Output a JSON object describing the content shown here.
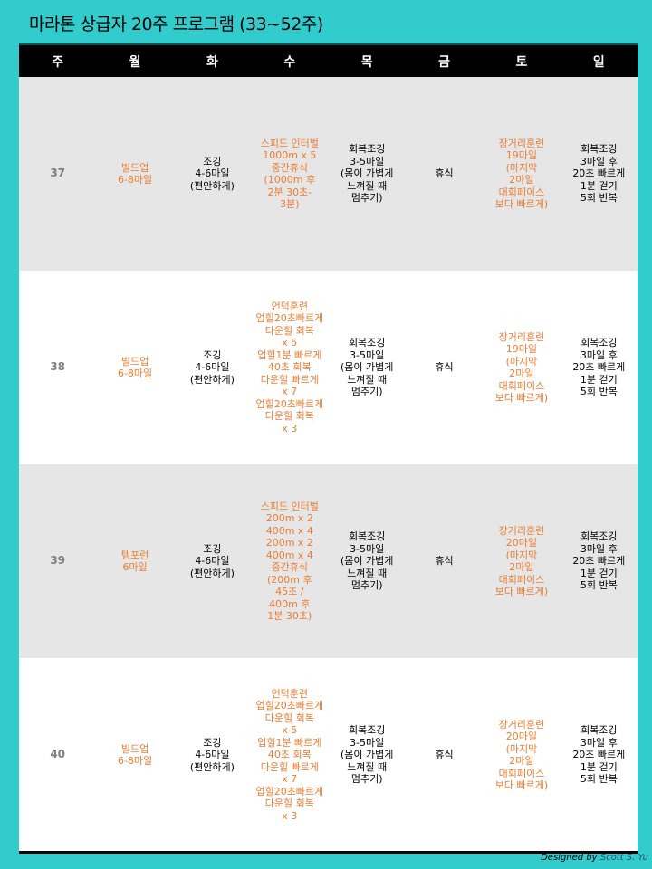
{
  "title": "마라톤 상급자 20주 프로그램 (33~52주)",
  "header": [
    "주",
    "월",
    "화",
    "수",
    "목",
    "금",
    "토",
    "일"
  ],
  "rows": [
    {
      "week": "37",
      "mon": "빌드업\n6-8마일",
      "tue": "조깅\n4-6마일\n(편안하게)",
      "wed": "스피드 인터벌\n1000m x 5\n중간휴식\n(1000m 후\n2분 30초-\n3분)",
      "thu": "회복조깅\n3-5마일\n(몸이 가볍게\n느껴질 때\n멈추기)",
      "fri": "휴식",
      "sat": "장거리훈련\n19마일\n(마지막\n2마일\n대회페이스\n보다 빠르게)",
      "sun": "회복조깅\n3마일 후\n20초 빠르게\n1분 걷기\n5회 반복"
    },
    {
      "week": "38",
      "mon": "빌드업\n6-8마일",
      "tue": "조깅\n4-6마일\n(편안하게)",
      "wed": "언덕훈련\n업힐20초빠르게\n다운힐 회복\nx 5\n업힐1분 빠르게\n40초 회복\n다운힐 빠르게\nx 7\n업힐20초빠르게\n다운힐 회복\nx 3",
      "thu": "회복조깅\n3-5마일\n(몸이 가볍게\n느껴질 때\n멈추기)",
      "fri": "휴식",
      "sat": "장거리훈련\n19마일\n(마지막\n2마일\n대회페이스\n보다 빠르게)",
      "sun": "회복조깅\n3마일 후\n20초 빠르게\n1분 걷기\n5회 반복"
    },
    {
      "week": "39",
      "mon": "템포런\n6마일",
      "tue": "조깅\n4-6마일\n(편안하게)",
      "wed": "스피드 인터벌\n200m x 2\n400m x 4\n200m x 2\n400m x 4\n중간휴식\n(200m 후\n45초 /\n400m 후\n1분 30초)",
      "thu": "회복조깅\n3-5마일\n(몸이 가볍게\n느껴질 때\n멈추기)",
      "fri": "휴식",
      "sat": "장거리훈련\n20마일\n(마지막\n2마일\n대회페이스\n보다 빠르게)",
      "sun": "회복조깅\n3마일 후\n20초 빠르게\n1분 걷기\n5회 반복"
    },
    {
      "week": "40",
      "mon": "빌드업\n6-8마일",
      "tue": "조깅\n4-6마일\n(편안하게)",
      "wed": "언덕훈련\n업힐20초빠르게\n다운힐 회복\nx 5\n업힐1분 빠르게\n40초 회복\n다운힐 빠르게\nx 7\n업힐20초빠르게\n다운힐 회복\nx 3",
      "thu": "회복조깅\n3-5마일\n(몸이 가볍게\n느껴질 때\n멈추기)",
      "fri": "휴식",
      "sat": "장거리훈련\n20마일\n(마지막\n2마일\n대회페이스\n보다 빠르게)",
      "sun": "회복조깅\n3마일 후\n20초 빠르게\n1분 걷기\n5회 반복"
    }
  ],
  "credit": {
    "prefix": "Designed by",
    "name": "Scott S. Yu"
  },
  "colors": {
    "background": "#33cccc",
    "header": "#000000",
    "accent": "#ed7d31",
    "week": "#7f7f7f"
  }
}
